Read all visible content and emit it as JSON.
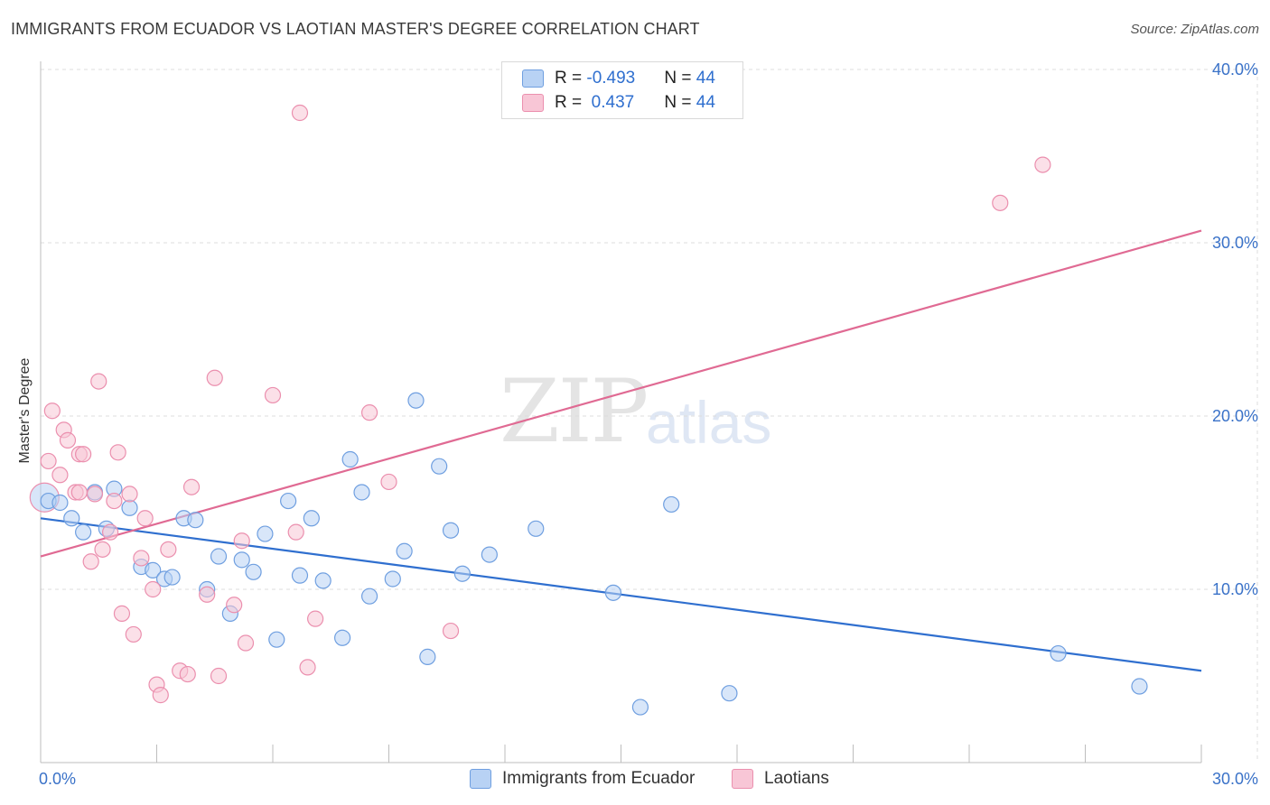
{
  "header": {
    "title": "IMMIGRANTS FROM ECUADOR VS LAOTIAN MASTER'S DEGREE CORRELATION CHART",
    "source": "Source: ZipAtlas.com"
  },
  "watermark": {
    "zip": "ZIP",
    "atlas": "atlas"
  },
  "legend": {
    "rows": [
      {
        "r_label": "R = ",
        "r_value": "-0.493",
        "n_label": "N = ",
        "n_value": "44"
      },
      {
        "r_label": "R = ",
        "r_value": " 0.437",
        "n_label": "N = ",
        "n_value": "44"
      }
    ]
  },
  "colors": {
    "blue_fill": "#b8d2f4",
    "blue_stroke": "#6f9fe0",
    "blue_line": "#2f6fcf",
    "pink_fill": "#f8c6d6",
    "pink_stroke": "#eb8fae",
    "pink_line": "#e06a93",
    "tick_text": "#3a72c8",
    "grid": "#dddddd"
  },
  "chart_data": {
    "type": "scatter",
    "title": "IMMIGRANTS FROM ECUADOR VS LAOTIAN MASTER'S DEGREE CORRELATION CHART",
    "xlabel": "",
    "ylabel": "Master's Degree",
    "xlim": [
      0,
      30
    ],
    "ylim": [
      0,
      40
    ],
    "x_tick_labels": [
      "0.0%",
      "30.0%"
    ],
    "y_tick_labels": [
      "10.0%",
      "20.0%",
      "30.0%",
      "40.0%"
    ],
    "y_ticks": [
      10,
      20,
      30,
      40
    ],
    "grid": true,
    "legend_placement": "bottom",
    "series": [
      {
        "name": "Immigrants from Ecuador",
        "r": -0.493,
        "n": 44,
        "trend": {
          "x": [
            0,
            30
          ],
          "y": [
            14.1,
            5.3
          ]
        },
        "points": [
          {
            "x": 0.2,
            "y": 15.1
          },
          {
            "x": 0.5,
            "y": 15.0
          },
          {
            "x": 0.8,
            "y": 14.1
          },
          {
            "x": 1.1,
            "y": 13.3
          },
          {
            "x": 1.4,
            "y": 15.6
          },
          {
            "x": 1.7,
            "y": 13.5
          },
          {
            "x": 1.9,
            "y": 15.8
          },
          {
            "x": 2.3,
            "y": 14.7
          },
          {
            "x": 2.6,
            "y": 11.3
          },
          {
            "x": 2.9,
            "y": 11.1
          },
          {
            "x": 3.2,
            "y": 10.6
          },
          {
            "x": 3.4,
            "y": 10.7
          },
          {
            "x": 3.7,
            "y": 14.1
          },
          {
            "x": 4.0,
            "y": 14.0
          },
          {
            "x": 4.3,
            "y": 10.0
          },
          {
            "x": 4.6,
            "y": 11.9
          },
          {
            "x": 4.9,
            "y": 8.6
          },
          {
            "x": 5.2,
            "y": 11.7
          },
          {
            "x": 5.5,
            "y": 11.0
          },
          {
            "x": 5.8,
            "y": 13.2
          },
          {
            "x": 6.1,
            "y": 7.1
          },
          {
            "x": 6.4,
            "y": 15.1
          },
          {
            "x": 6.7,
            "y": 10.8
          },
          {
            "x": 7.0,
            "y": 14.1
          },
          {
            "x": 7.3,
            "y": 10.5
          },
          {
            "x": 7.8,
            "y": 7.2
          },
          {
            "x": 8.0,
            "y": 17.5
          },
          {
            "x": 8.3,
            "y": 15.6
          },
          {
            "x": 8.5,
            "y": 9.6
          },
          {
            "x": 9.1,
            "y": 10.6
          },
          {
            "x": 9.4,
            "y": 12.2
          },
          {
            "x": 9.7,
            "y": 20.9
          },
          {
            "x": 10.0,
            "y": 6.1
          },
          {
            "x": 10.3,
            "y": 17.1
          },
          {
            "x": 10.6,
            "y": 13.4
          },
          {
            "x": 10.9,
            "y": 10.9
          },
          {
            "x": 11.6,
            "y": 12.0
          },
          {
            "x": 12.8,
            "y": 13.5
          },
          {
            "x": 14.8,
            "y": 9.8
          },
          {
            "x": 15.5,
            "y": 3.2
          },
          {
            "x": 16.3,
            "y": 14.9
          },
          {
            "x": 17.8,
            "y": 4.0
          },
          {
            "x": 26.3,
            "y": 6.3
          },
          {
            "x": 28.4,
            "y": 4.4
          }
        ]
      },
      {
        "name": "Laotians",
        "r": 0.437,
        "n": 44,
        "trend": {
          "x": [
            0,
            30
          ],
          "y": [
            11.9,
            30.7
          ]
        },
        "points": [
          {
            "x": 0.2,
            "y": 17.4
          },
          {
            "x": 0.3,
            "y": 20.3
          },
          {
            "x": 0.5,
            "y": 16.6
          },
          {
            "x": 0.6,
            "y": 19.2
          },
          {
            "x": 0.7,
            "y": 18.6
          },
          {
            "x": 0.9,
            "y": 15.6
          },
          {
            "x": 1.0,
            "y": 17.8
          },
          {
            "x": 1.1,
            "y": 17.8
          },
          {
            "x": 1.3,
            "y": 11.6
          },
          {
            "x": 1.4,
            "y": 15.5
          },
          {
            "x": 1.5,
            "y": 22.0
          },
          {
            "x": 1.6,
            "y": 12.3
          },
          {
            "x": 1.8,
            "y": 13.3
          },
          {
            "x": 1.9,
            "y": 15.1
          },
          {
            "x": 2.0,
            "y": 17.9
          },
          {
            "x": 2.1,
            "y": 8.6
          },
          {
            "x": 2.3,
            "y": 15.5
          },
          {
            "x": 2.4,
            "y": 7.4
          },
          {
            "x": 2.6,
            "y": 11.8
          },
          {
            "x": 2.7,
            "y": 14.1
          },
          {
            "x": 2.9,
            "y": 10.0
          },
          {
            "x": 3.0,
            "y": 4.5
          },
          {
            "x": 3.1,
            "y": 3.9
          },
          {
            "x": 3.3,
            "y": 12.3
          },
          {
            "x": 3.6,
            "y": 5.3
          },
          {
            "x": 3.8,
            "y": 5.1
          },
          {
            "x": 3.9,
            "y": 15.9
          },
          {
            "x": 4.3,
            "y": 9.7
          },
          {
            "x": 4.5,
            "y": 22.2
          },
          {
            "x": 4.6,
            "y": 5.0
          },
          {
            "x": 5.0,
            "y": 9.1
          },
          {
            "x": 5.2,
            "y": 12.8
          },
          {
            "x": 5.3,
            "y": 6.9
          },
          {
            "x": 6.0,
            "y": 21.2
          },
          {
            "x": 6.6,
            "y": 13.3
          },
          {
            "x": 6.7,
            "y": 37.5
          },
          {
            "x": 6.9,
            "y": 5.5
          },
          {
            "x": 7.1,
            "y": 8.3
          },
          {
            "x": 8.5,
            "y": 20.2
          },
          {
            "x": 9.0,
            "y": 16.2
          },
          {
            "x": 10.6,
            "y": 7.6
          },
          {
            "x": 24.8,
            "y": 32.3
          },
          {
            "x": 25.9,
            "y": 34.5
          },
          {
            "x": 1.0,
            "y": 15.6
          }
        ]
      }
    ]
  }
}
